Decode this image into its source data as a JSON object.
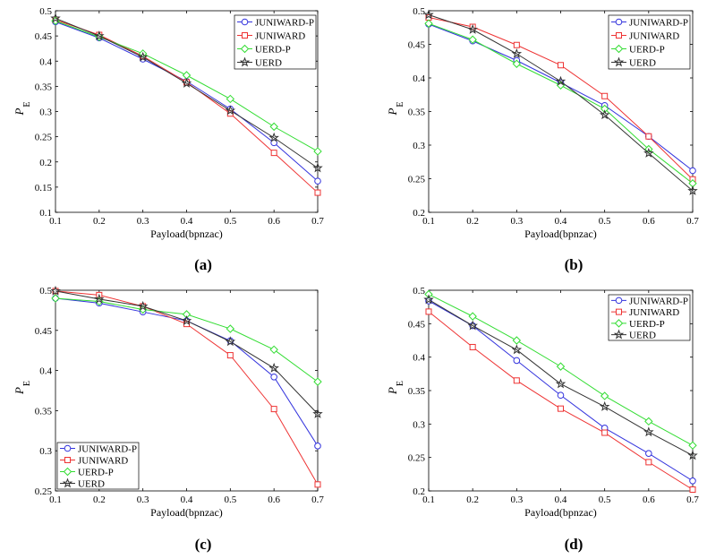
{
  "chart_data": [
    {
      "type": "line",
      "panel_label": "(a)",
      "xlabel": "Payload(bpnzac)",
      "ylabel_main": "P",
      "ylabel_sub": "E",
      "x": [
        0.1,
        0.2,
        0.3,
        0.4,
        0.5,
        0.6,
        0.7
      ],
      "xlim": [
        0.1,
        0.7
      ],
      "ylim": [
        0.1,
        0.5
      ],
      "xticks": [
        "0.1",
        "0.2",
        "0.3",
        "0.4",
        "0.5",
        "0.6",
        "0.7"
      ],
      "yticks": [
        0.1,
        0.15,
        0.2,
        0.25,
        0.3,
        0.35,
        0.4,
        0.45,
        0.5
      ],
      "ytick_labels": [
        "0.1",
        "0.15",
        "0.2",
        "0.25",
        "0.3",
        "0.35",
        "0.4",
        "0.45",
        "0.5"
      ],
      "legend_position": "top-right",
      "series": [
        {
          "name": "JUNIWARD-P",
          "color": "#3333dd",
          "marker": "circle",
          "values": [
            0.478,
            0.446,
            0.404,
            0.36,
            0.305,
            0.238,
            0.162
          ]
        },
        {
          "name": "JUNIWARD",
          "color": "#ee3333",
          "marker": "square",
          "values": [
            0.482,
            0.452,
            0.41,
            0.358,
            0.296,
            0.218,
            0.139
          ]
        },
        {
          "name": "UERD-P",
          "color": "#33dd33",
          "marker": "diamond",
          "values": [
            0.48,
            0.448,
            0.415,
            0.372,
            0.325,
            0.27,
            0.221
          ]
        },
        {
          "name": "UERD",
          "color": "#333333",
          "marker": "star",
          "values": [
            0.485,
            0.45,
            0.408,
            0.356,
            0.302,
            0.248,
            0.188
          ]
        }
      ]
    },
    {
      "type": "line",
      "panel_label": "(b)",
      "xlabel": "Payload(bpnzac)",
      "ylabel_main": "P",
      "ylabel_sub": "E",
      "x": [
        0.1,
        0.2,
        0.3,
        0.4,
        0.5,
        0.6,
        0.7
      ],
      "xlim": [
        0.1,
        0.7
      ],
      "ylim": [
        0.2,
        0.5
      ],
      "xticks": [
        "0.1",
        "0.2",
        "0.3",
        "0.4",
        "0.5",
        "0.6",
        "0.7"
      ],
      "yticks": [
        0.2,
        0.25,
        0.3,
        0.35,
        0.4,
        0.45,
        0.5
      ],
      "ytick_labels": [
        "0.2",
        "0.25",
        "0.3",
        "0.35",
        "0.4",
        "0.45",
        "0.5"
      ],
      "legend_position": "top-right",
      "series": [
        {
          "name": "JUNIWARD-P",
          "color": "#3333dd",
          "marker": "circle",
          "values": [
            0.48,
            0.455,
            0.426,
            0.393,
            0.359,
            0.313,
            0.262
          ]
        },
        {
          "name": "JUNIWARD",
          "color": "#ee3333",
          "marker": "square",
          "values": [
            0.49,
            0.476,
            0.449,
            0.419,
            0.373,
            0.313,
            0.249
          ]
        },
        {
          "name": "UERD-P",
          "color": "#33dd33",
          "marker": "diamond",
          "values": [
            0.481,
            0.457,
            0.421,
            0.389,
            0.354,
            0.294,
            0.243
          ]
        },
        {
          "name": "UERD",
          "color": "#333333",
          "marker": "star",
          "values": [
            0.494,
            0.472,
            0.436,
            0.395,
            0.345,
            0.288,
            0.232
          ]
        }
      ]
    },
    {
      "type": "line",
      "panel_label": "(c)",
      "xlabel": "Payload(bpnzac)",
      "ylabel_main": "P",
      "ylabel_sub": "E",
      "x": [
        0.1,
        0.2,
        0.3,
        0.4,
        0.5,
        0.6,
        0.7
      ],
      "xlim": [
        0.1,
        0.7
      ],
      "ylim": [
        0.25,
        0.5
      ],
      "xticks": [
        "0.1",
        "0.2",
        "0.3",
        "0.4",
        "0.5",
        "0.6",
        "0.7"
      ],
      "yticks": [
        0.25,
        0.3,
        0.35,
        0.4,
        0.45,
        0.5
      ],
      "ytick_labels": [
        "0.25",
        "0.3",
        "0.35",
        "0.4",
        "0.45",
        "0.5"
      ],
      "legend_position": "bottom-left",
      "series": [
        {
          "name": "JUNIWARD-P",
          "color": "#3333dd",
          "marker": "circle",
          "values": [
            0.49,
            0.484,
            0.473,
            0.462,
            0.437,
            0.392,
            0.306
          ]
        },
        {
          "name": "JUNIWARD",
          "color": "#ee3333",
          "marker": "square",
          "values": [
            0.499,
            0.494,
            0.48,
            0.458,
            0.419,
            0.352,
            0.258
          ]
        },
        {
          "name": "UERD-P",
          "color": "#33dd33",
          "marker": "diamond",
          "values": [
            0.49,
            0.486,
            0.476,
            0.47,
            0.452,
            0.426,
            0.386
          ]
        },
        {
          "name": "UERD",
          "color": "#333333",
          "marker": "star",
          "values": [
            0.499,
            0.489,
            0.48,
            0.462,
            0.436,
            0.403,
            0.346
          ]
        }
      ]
    },
    {
      "type": "line",
      "panel_label": "(d)",
      "xlabel": "Payload(bpnzac)",
      "ylabel_main": "P",
      "ylabel_sub": "E",
      "x": [
        0.1,
        0.2,
        0.3,
        0.4,
        0.5,
        0.6,
        0.7
      ],
      "xlim": [
        0.1,
        0.7
      ],
      "ylim": [
        0.2,
        0.5
      ],
      "xticks": [
        "0.1",
        "0.2",
        "0.3",
        "0.4",
        "0.5",
        "0.6",
        "0.7"
      ],
      "yticks": [
        0.2,
        0.25,
        0.3,
        0.35,
        0.4,
        0.45,
        0.5
      ],
      "ytick_labels": [
        "0.2",
        "0.25",
        "0.3",
        "0.35",
        "0.4",
        "0.45",
        "0.5"
      ],
      "legend_position": "top-right",
      "series": [
        {
          "name": "JUNIWARD-P",
          "color": "#3333dd",
          "marker": "circle",
          "values": [
            0.484,
            0.447,
            0.395,
            0.343,
            0.294,
            0.256,
            0.215
          ]
        },
        {
          "name": "JUNIWARD",
          "color": "#ee3333",
          "marker": "square",
          "values": [
            0.468,
            0.415,
            0.365,
            0.323,
            0.287,
            0.243,
            0.202
          ]
        },
        {
          "name": "UERD-P",
          "color": "#33dd33",
          "marker": "diamond",
          "values": [
            0.494,
            0.461,
            0.425,
            0.386,
            0.342,
            0.304,
            0.268
          ]
        },
        {
          "name": "UERD",
          "color": "#333333",
          "marker": "star",
          "values": [
            0.486,
            0.447,
            0.411,
            0.36,
            0.326,
            0.288,
            0.253
          ]
        }
      ]
    }
  ]
}
